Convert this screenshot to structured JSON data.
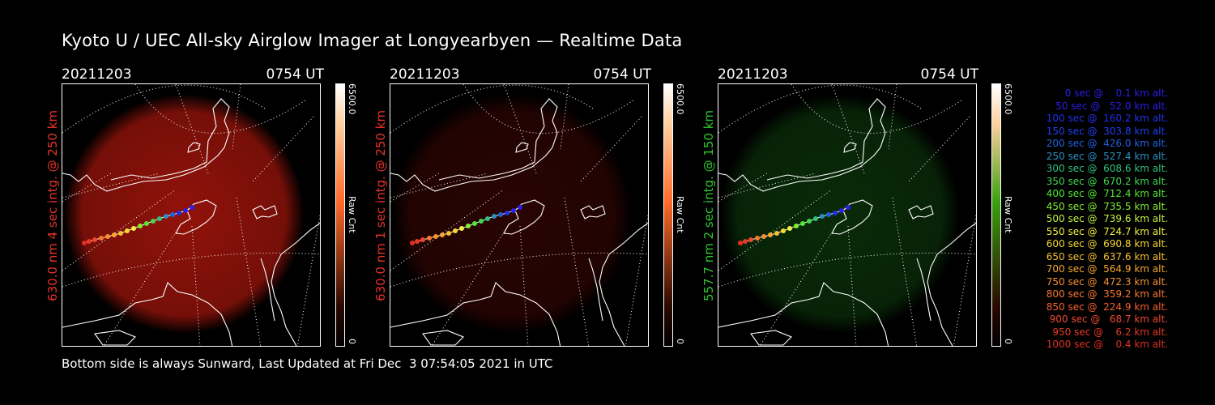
{
  "title": "Kyoto U / UEC All-sky Airglow Imager at Longyearbyen — Realtime Data",
  "footer": "Bottom side is always Sunward, Last Updated at Fri Dec  3 07:54:05 2021 in UTC",
  "panels": [
    {
      "date": "20211203",
      "time": "0754 UT",
      "ylabel": "630.0 nm  4 sec intg. @ 250 km",
      "label_color": "#e8322a",
      "glow": "#c2190e",
      "glow_opacity": 0.75,
      "cbar_max": "6500.0",
      "cbar_min": "0",
      "cbar_label": "Raw Cnt",
      "cbar_color": "#ff6a2a"
    },
    {
      "date": "20211203",
      "time": "0754 UT",
      "ylabel": "630.0 nm  1 sec intg. @ 250 km",
      "label_color": "#e8322a",
      "glow": "#8a0e08",
      "glow_opacity": 0.3,
      "cbar_max": "6500.0",
      "cbar_min": "0",
      "cbar_label": "Raw Cnt",
      "cbar_color": "#ff6a2a"
    },
    {
      "date": "20211203",
      "time": "0754 UT",
      "ylabel": "557.7 nm  2 sec intg. @ 150 km",
      "label_color": "#2ec82e",
      "glow": "#1a7a1a",
      "glow_opacity": 0.35,
      "cbar_max": "6500.0",
      "cbar_min": "0",
      "cbar_label": "Raw Cnt",
      "cbar_color": "#3aa010"
    }
  ],
  "legend": [
    {
      "text": "0 sec @    0.1 km alt.",
      "color": "#2a1ee8"
    },
    {
      "text": "50 sec @   52.0 km alt.",
      "color": "#2a1ee8"
    },
    {
      "text": "100 sec @  160.2 km alt.",
      "color": "#2030f0"
    },
    {
      "text": "150 sec @  303.8 km alt.",
      "color": "#2040f0"
    },
    {
      "text": "200 sec @  426.0 km alt.",
      "color": "#2060e0"
    },
    {
      "text": "250 sec @  527.4 km alt.",
      "color": "#2a90c0"
    },
    {
      "text": "300 sec @  608.6 km alt.",
      "color": "#30c080"
    },
    {
      "text": "350 sec @  670.2 km alt.",
      "color": "#40d850"
    },
    {
      "text": "400 sec @  712.4 km alt.",
      "color": "#50e830"
    },
    {
      "text": "450 sec @  735.5 km alt.",
      "color": "#80f030"
    },
    {
      "text": "500 sec @  739.6 km alt.",
      "color": "#c0f040"
    },
    {
      "text": "550 sec @  724.7 km alt.",
      "color": "#f0f040"
    },
    {
      "text": "600 sec @  690.8 km alt.",
      "color": "#f8d830"
    },
    {
      "text": "650 sec @  637.6 km alt.",
      "color": "#f8c030"
    },
    {
      "text": "700 sec @  564.9 km alt.",
      "color": "#f8a830"
    },
    {
      "text": "750 sec @  472.3 km alt.",
      "color": "#f89030"
    },
    {
      "text": "800 sec @  359.2 km alt.",
      "color": "#f87830"
    },
    {
      "text": "850 sec @  224.9 km alt.",
      "color": "#f86030"
    },
    {
      "text": "900 sec @   68.7 km alt.",
      "color": "#f04830"
    },
    {
      "text": "950 sec @    6.2 km alt.",
      "color": "#e83828"
    },
    {
      "text": "1000 sec @    0.4 km alt.",
      "color": "#e03020"
    }
  ]
}
